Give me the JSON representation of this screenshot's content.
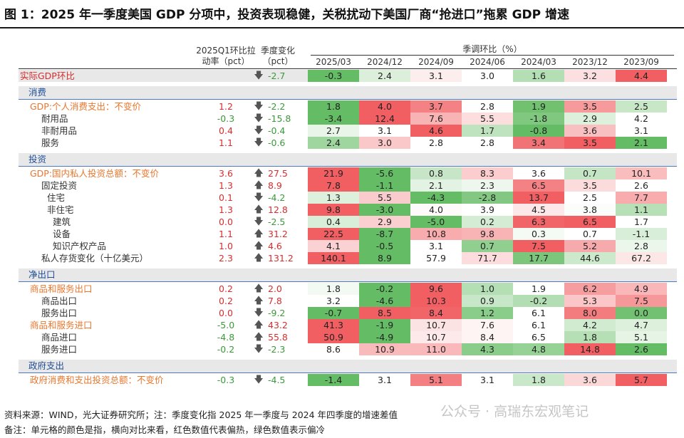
{
  "title": "图 1：2025 年一季度美国 GDP 分项中，投资表现稳健，关税扰动下美国厂商“抢进口”拖累 GDP 增速",
  "headers": {
    "pull_line1": "2025Q1环比拉",
    "pull_line2": "动率（pct）",
    "change_line1": "季度变化",
    "change_line2": "（pct）",
    "group_title": "季调环比（%）",
    "quarters": [
      "2025/03",
      "2024/12",
      "2024/09",
      "2024/06",
      "2024/03",
      "2023/12",
      "2023/09"
    ]
  },
  "icons": {
    "down": "down-arrow-icon",
    "up": "up-arrow-icon"
  },
  "colors": {
    "hot_max": "#f0575a",
    "cold_max": "#5cb85c",
    "neutral": "#ffffff",
    "section_blue": "#1f4e99",
    "label_orange": "#e8772e",
    "label_red": "#d92d2d"
  },
  "chart_data": {
    "type": "table",
    "columns": [
      "2025/03",
      "2024/12",
      "2024/09",
      "2024/06",
      "2024/03",
      "2023/12",
      "2023/09"
    ],
    "color_scale": "per-row; red = hotter values, green = colder values",
    "sections": [
      {
        "name": "",
        "rows": [
          {
            "label": "实际GDP环比",
            "style": "red",
            "indent": 0,
            "pull": "",
            "change_dir": "down",
            "change": "-2.7",
            "values": [
              -0.3,
              2.4,
              3.1,
              3.0,
              1.6,
              3.2,
              4.4
            ]
          }
        ]
      },
      {
        "name": "消费",
        "rows": [
          {
            "label": "GDP:个人消费支出：不变价",
            "style": "orange",
            "indent": 1,
            "pull": "1.2",
            "change_dir": "down",
            "change": "-2.2",
            "values": [
              1.8,
              4.0,
              3.7,
              2.8,
              1.9,
              3.5,
              2.5
            ]
          },
          {
            "label": "耐用品",
            "style": "dark",
            "indent": 2,
            "pull": "-0.3",
            "change_dir": "down",
            "change": "-15.8",
            "values": [
              -3.4,
              12.4,
              7.6,
              5.5,
              -1.8,
              2.9,
              4.2
            ]
          },
          {
            "label": "非耐用品",
            "style": "dark",
            "indent": 2,
            "pull": "0.4",
            "change_dir": "down",
            "change": "-0.4",
            "values": [
              2.7,
              3.1,
              4.6,
              1.7,
              -0.8,
              3.6,
              3.1
            ]
          },
          {
            "label": "服务",
            "style": "dark",
            "indent": 2,
            "pull": "1.1",
            "change_dir": "down",
            "change": "-0.6",
            "values": [
              2.4,
              3.0,
              2.8,
              2.8,
              3.4,
              3.5,
              2.1
            ]
          }
        ]
      },
      {
        "name": "投资",
        "rows": [
          {
            "label": "GDP:国内私人投资总额：不变价",
            "style": "orange",
            "indent": 1,
            "pull": "3.6",
            "change_dir": "up",
            "change": "27.5",
            "values": [
              21.9,
              -5.6,
              0.8,
              8.3,
              3.6,
              0.7,
              10.1
            ]
          },
          {
            "label": "固定投资",
            "style": "dark",
            "indent": 2,
            "pull": "1.3",
            "change_dir": "up",
            "change": "8.9",
            "values": [
              7.8,
              -1.1,
              2.1,
              2.3,
              6.5,
              3.5,
              2.6
            ]
          },
          {
            "label": "住宅",
            "style": "dark",
            "indent": 3,
            "pull": "0.1",
            "change_dir": "down",
            "change": "-4.2",
            "values": [
              1.3,
              5.5,
              -4.3,
              -2.8,
              13.7,
              2.5,
              7.7
            ]
          },
          {
            "label": "非住宅",
            "style": "dark",
            "indent": 3,
            "pull": "1.3",
            "change_dir": "up",
            "change": "12.8",
            "values": [
              9.8,
              -3.0,
              4.0,
              3.9,
              4.5,
              3.8,
              1.1
            ]
          },
          {
            "label": "建筑",
            "style": "dark",
            "indent": 4,
            "pull": "0.0",
            "change_dir": "down",
            "change": "-2.5",
            "values": [
              0.4,
              2.9,
              -5.0,
              0.2,
              6.3,
              6.5,
              1.7
            ]
          },
          {
            "label": "设备",
            "style": "dark",
            "indent": 4,
            "pull": "1.1",
            "change_dir": "up",
            "change": "31.2",
            "values": [
              22.5,
              -8.7,
              10.8,
              9.8,
              0.3,
              0.7,
              -1.1
            ]
          },
          {
            "label": "知识产权产品",
            "style": "dark",
            "indent": 4,
            "pull": "1.0",
            "change_dir": "up",
            "change": "4.6",
            "values": [
              4.1,
              -0.5,
              3.1,
              0.7,
              7.5,
              5.2,
              2.8
            ]
          },
          {
            "label": "私人存货变化（十亿美元）",
            "style": "dark",
            "indent": 2,
            "pull": "2.3",
            "change_dir": "up",
            "change": "131.2",
            "values": [
              140.1,
              8.9,
              57.9,
              71.7,
              17.7,
              44.6,
              67.2
            ]
          }
        ]
      },
      {
        "name": "净出口",
        "rows": [
          {
            "label": "商品和服务出口",
            "style": "orange",
            "indent": 1,
            "pull": "0.2",
            "change_dir": "up",
            "change": "2.0",
            "values": [
              1.8,
              -0.2,
              9.6,
              1.0,
              1.9,
              6.2,
              4.9
            ]
          },
          {
            "label": "商品出口",
            "style": "dark",
            "indent": 2,
            "pull": "0.2",
            "change_dir": "up",
            "change": "7.8",
            "values": [
              3.2,
              -4.6,
              10.3,
              0.9,
              -0.2,
              5.3,
              7.5
            ]
          },
          {
            "label": "服务出口",
            "style": "dark",
            "indent": 2,
            "pull": "0.0",
            "change_dir": "down",
            "change": "-9.2",
            "values": [
              -0.7,
              8.5,
              8.4,
              1.2,
              6.1,
              8.0,
              0.0
            ]
          },
          {
            "label": "商品和服务进口",
            "style": "orange",
            "indent": 1,
            "pull": "-5.0",
            "change_dir": "up",
            "change": "43.2",
            "values": [
              41.3,
              -1.9,
              10.7,
              7.6,
              6.1,
              4.2,
              4.7
            ]
          },
          {
            "label": "商品进口",
            "style": "dark",
            "indent": 2,
            "pull": "-4.8",
            "change_dir": "up",
            "change": "55.8",
            "values": [
              50.9,
              -4.9,
              10.7,
              8.4,
              6.5,
              1.8,
              5.1
            ]
          },
          {
            "label": "服务进口",
            "style": "dark",
            "indent": 2,
            "pull": "-0.2",
            "change_dir": "down",
            "change": "-2.3",
            "values": [
              8.6,
              10.9,
              11.0,
              4.3,
              4.8,
              14.8,
              2.6
            ]
          }
        ]
      },
      {
        "name": "政府支出",
        "rows": [
          {
            "label": "政府消费和支出投资总额：不变价",
            "style": "orange",
            "indent": 1,
            "pull": "-0.3",
            "change_dir": "down",
            "change": "-4.5",
            "values": [
              -1.4,
              3.1,
              5.1,
              3.1,
              1.8,
              3.6,
              5.7
            ]
          }
        ]
      }
    ]
  },
  "source": "资料来源：WIND，光大证券研究所；注：季度变化指 2025 年一季度与 2024 年四季度的增速差值",
  "note": "备注：单元格的颜色是指，横向对比来看，红色数值代表偏热，绿色数值表示偏冷",
  "watermark": "公众号 · 高瑞东宏观笔记"
}
